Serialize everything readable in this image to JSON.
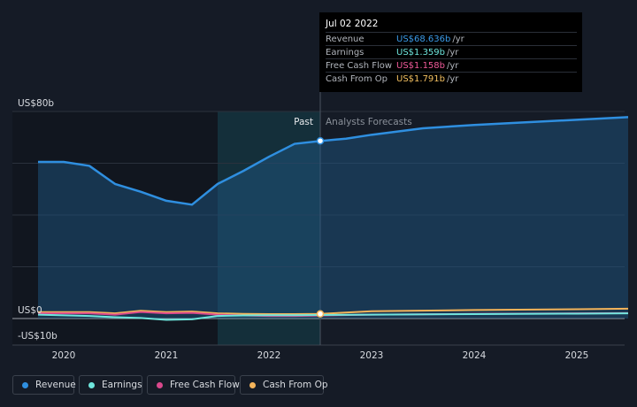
{
  "tooltip": {
    "date": "Jul 02 2022",
    "rows": [
      {
        "label": "Revenue",
        "value": "US$68.636b",
        "unit": "/yr",
        "color": "#3b9be9"
      },
      {
        "label": "Earnings",
        "value": "US$1.359b",
        "unit": "/yr",
        "color": "#6ee6dd"
      },
      {
        "label": "Free Cash Flow",
        "value": "US$1.158b",
        "unit": "/yr",
        "color": "#f05a99"
      },
      {
        "label": "Cash From Op",
        "value": "US$1.791b",
        "unit": "/yr",
        "color": "#f4c060"
      }
    ]
  },
  "legend": [
    {
      "label": "Revenue",
      "color": "#2f8fe0"
    },
    {
      "label": "Earnings",
      "color": "#6ee6dd"
    },
    {
      "label": "Free Cash Flow",
      "color": "#d9488c"
    },
    {
      "label": "Cash From Op",
      "color": "#f4b45a"
    }
  ],
  "chart_data": {
    "type": "line",
    "y_tick_labels": [
      "US$80b",
      "US$0",
      "-US$10b"
    ],
    "ylim": [
      -10,
      80
    ],
    "xlim": [
      2019.75,
      2025.5
    ],
    "x_tick_labels": [
      "2020",
      "2021",
      "2022",
      "2023",
      "2024",
      "2025"
    ],
    "x_ticks": [
      2020,
      2021,
      2022,
      2023,
      2024,
      2025
    ],
    "region_labels": {
      "past": "Past",
      "forecast": "Analysts Forecasts"
    },
    "divider_x": 2022.5,
    "shaded_from_x": 2021.5,
    "grid": true,
    "legend_position": "bottom-left",
    "series": [
      {
        "name": "Revenue",
        "color": "#2f8fe0",
        "x": [
          2019.75,
          2020.0,
          2020.25,
          2020.5,
          2020.75,
          2021.0,
          2021.25,
          2021.5,
          2021.75,
          2022.0,
          2022.25,
          2022.5,
          2022.75,
          2023.0,
          2023.5,
          2024.0,
          2024.5,
          2025.0,
          2025.5
        ],
        "y": [
          60.5,
          60.5,
          59.0,
          52.0,
          49.0,
          45.5,
          44.0,
          52.0,
          57.0,
          62.5,
          67.5,
          68.6,
          69.5,
          71.0,
          73.5,
          74.8,
          75.8,
          76.8,
          77.8
        ]
      },
      {
        "name": "Earnings",
        "color": "#6ee6dd",
        "x": [
          2019.75,
          2020.25,
          2020.5,
          2020.75,
          2021.0,
          2021.25,
          2021.5,
          2021.75,
          2022.0,
          2022.25,
          2022.5,
          2023.0,
          2024.0,
          2025.0,
          2025.5
        ],
        "y": [
          1.5,
          1.0,
          0.5,
          0.2,
          -0.5,
          -0.3,
          1.0,
          1.2,
          1.3,
          1.3,
          1.359,
          1.5,
          1.7,
          1.9,
          2.0
        ]
      },
      {
        "name": "Free Cash Flow",
        "color": "#d9488c",
        "x": [
          2019.75,
          2020.25,
          2020.5,
          2020.75,
          2021.0,
          2021.25,
          2021.5,
          2021.75,
          2022.0,
          2022.25,
          2022.5,
          2023.0,
          2024.0,
          2025.0,
          2025.5
        ],
        "y": [
          2.0,
          2.0,
          1.5,
          2.5,
          2.0,
          2.2,
          1.5,
          1.2,
          1.0,
          1.0,
          1.158,
          1.5,
          1.8,
          2.0,
          2.1
        ]
      },
      {
        "name": "Cash From Op",
        "color": "#f4b45a",
        "x": [
          2019.75,
          2020.25,
          2020.5,
          2020.75,
          2021.0,
          2021.25,
          2021.5,
          2021.75,
          2022.0,
          2022.25,
          2022.5,
          2023.0,
          2024.0,
          2025.0,
          2025.5
        ],
        "y": [
          2.5,
          2.5,
          2.0,
          3.0,
          2.5,
          2.7,
          2.0,
          1.8,
          1.7,
          1.7,
          1.791,
          2.8,
          3.3,
          3.6,
          3.8
        ]
      }
    ]
  }
}
